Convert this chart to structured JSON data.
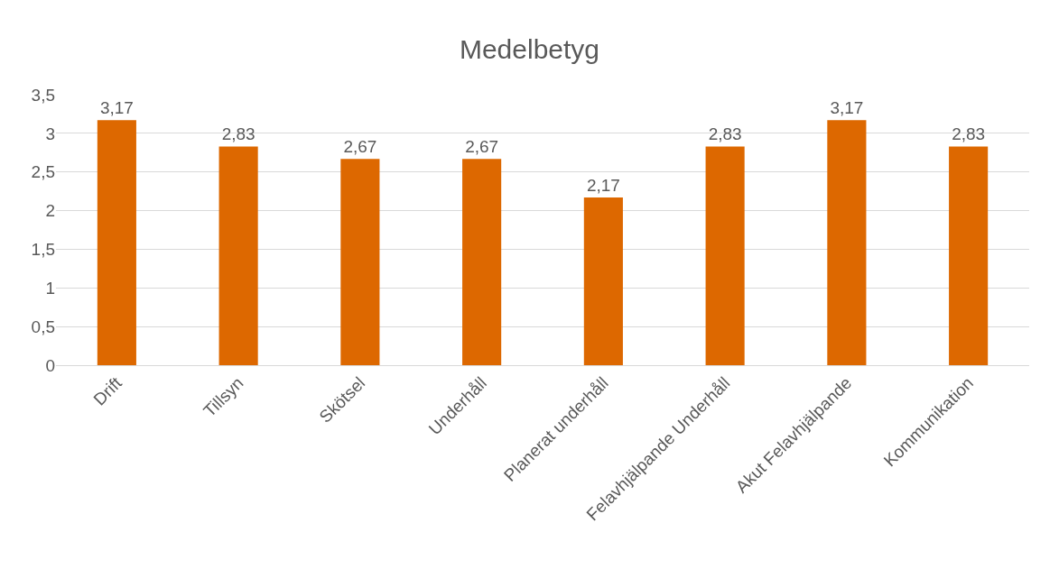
{
  "chart_data": {
    "type": "bar",
    "title": "Medelbetyg",
    "categories": [
      "Drift",
      "Tillsyn",
      "Skötsel",
      "Underhåll",
      "Planerat underhåll",
      "Felavhjälpande Underhåll",
      "Akut Felavhjälpande",
      "Kommunikation"
    ],
    "values": [
      3.17,
      2.83,
      2.67,
      2.67,
      2.17,
      2.83,
      3.17,
      2.83
    ],
    "value_labels": [
      "3,17",
      "2,83",
      "2,67",
      "2,67",
      "2,17",
      "2,83",
      "3,17",
      "2,83"
    ],
    "color": "#dd6800",
    "ylim": [
      0,
      3.5
    ],
    "yticks": [
      0,
      {
        "value": 0.5,
        "label": "0,5"
      },
      1,
      {
        "value": 1.5,
        "label": "1,5"
      },
      2,
      {
        "value": 2.5,
        "label": "2,5"
      },
      3,
      {
        "value": 3.5,
        "label": "3,5"
      }
    ],
    "grid": "y",
    "legend": false
  }
}
